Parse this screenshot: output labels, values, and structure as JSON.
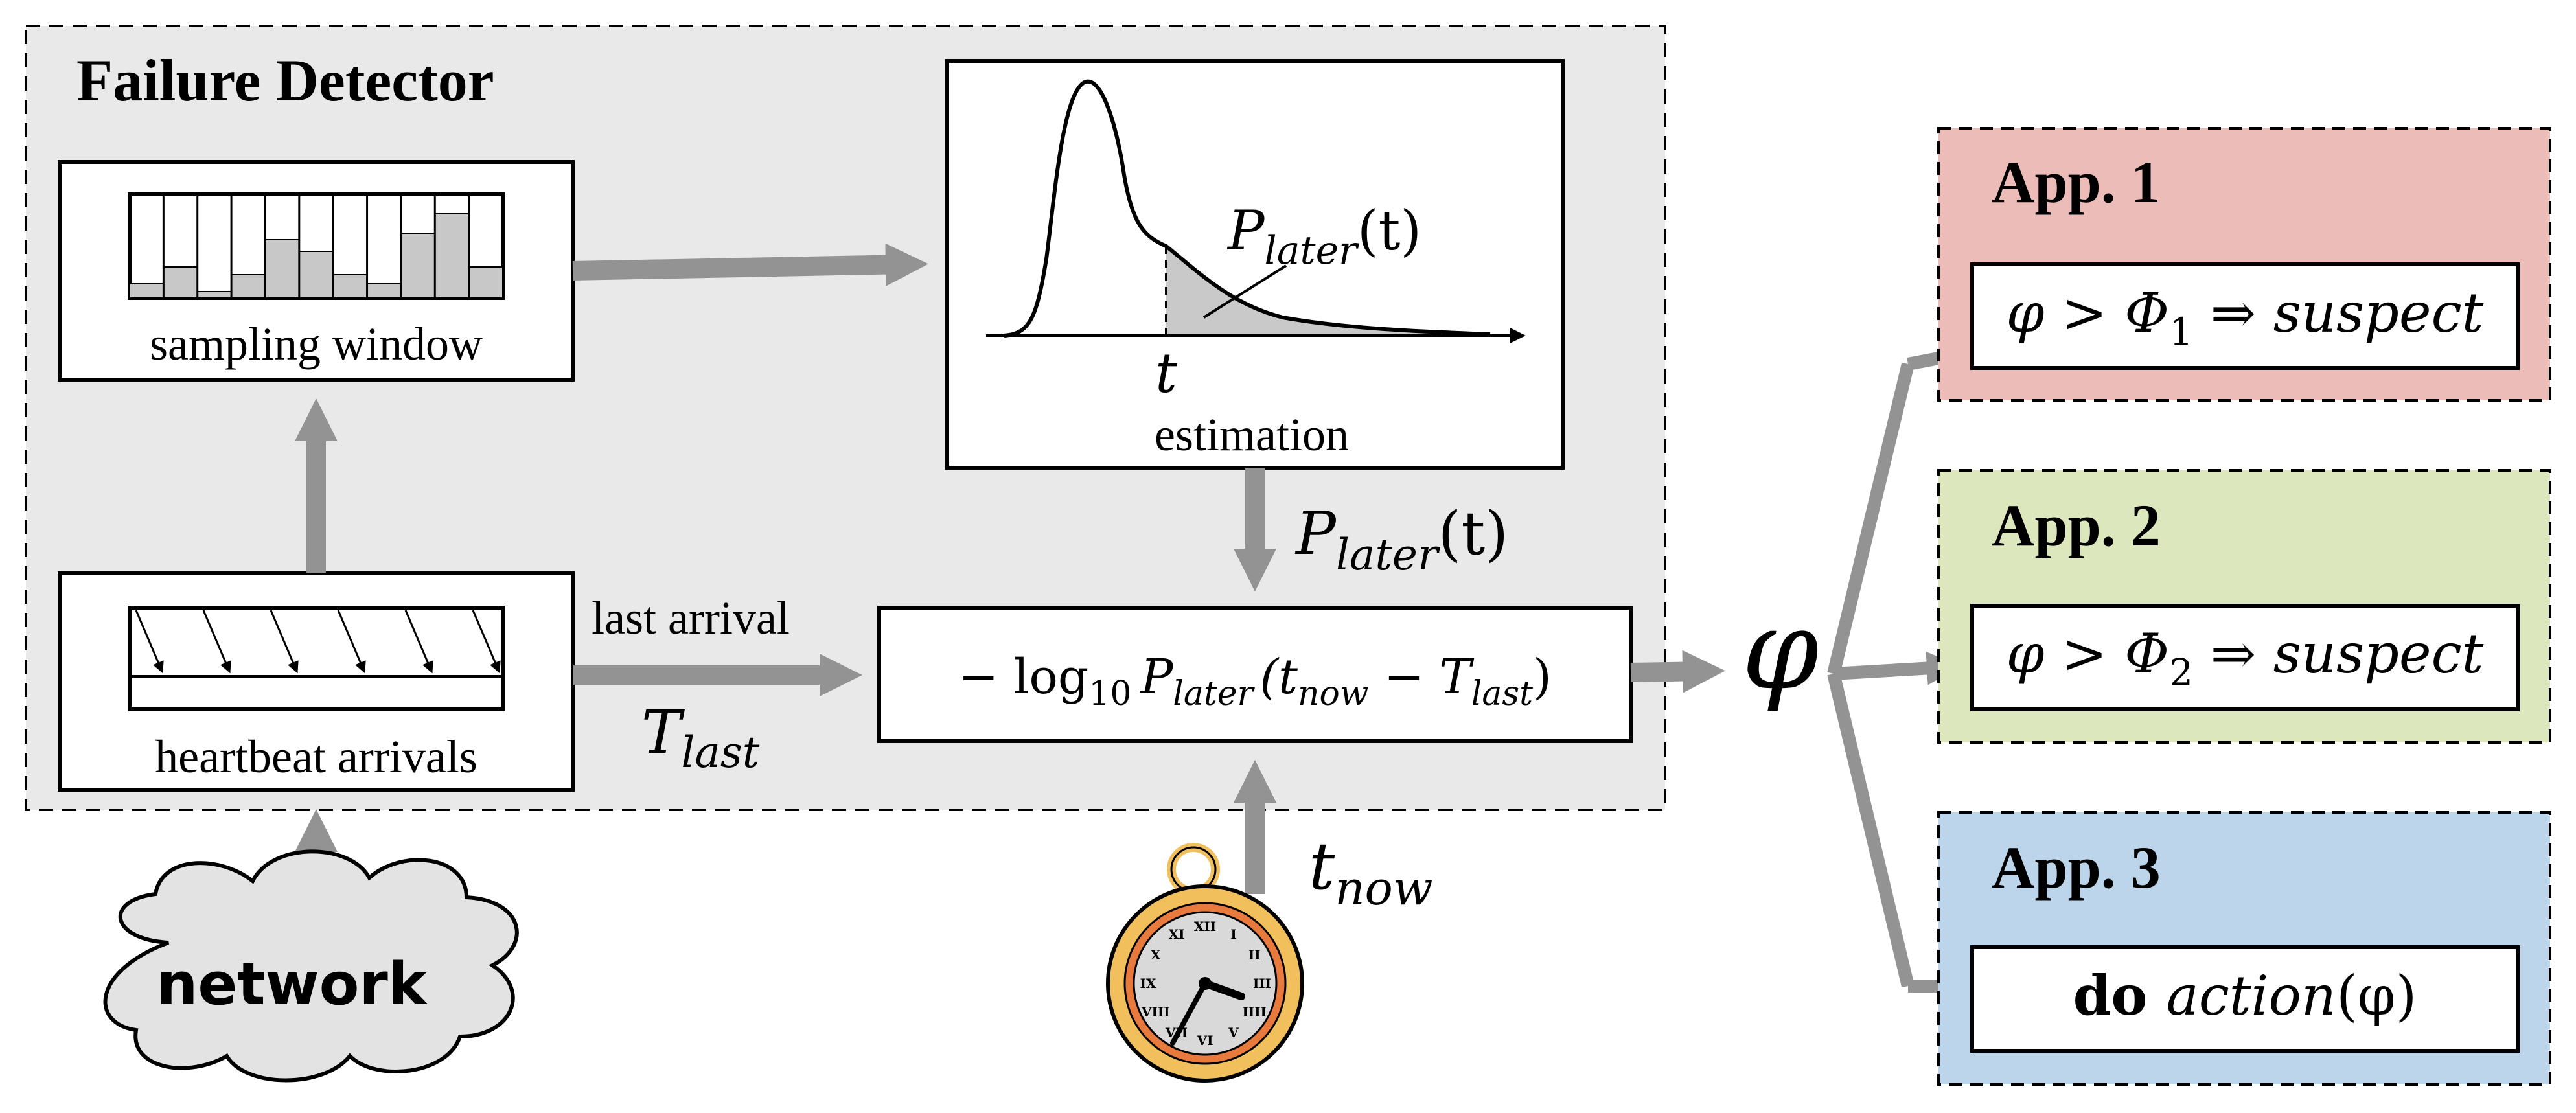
{
  "failure_detector": {
    "title": "Failure Detector",
    "sampling_window_label": "sampling window",
    "heartbeat_label": "heartbeat arrivals",
    "estimation_label": "estimation",
    "plot_curve_label_main": "P",
    "plot_curve_label_sub": "later",
    "plot_curve_label_arg": "(t)",
    "plot_t_label": "t",
    "p_later_arrow_main": "P",
    "p_later_arrow_sub": "later",
    "p_later_arrow_arg": "(t)",
    "last_arrival_label": "last arrival",
    "t_last_main": "T",
    "t_last_sub": "last",
    "phi_formula": {
      "minus_log": "− log",
      "log_sub": "10",
      "p": "P",
      "p_sub": "later",
      "open": "(t",
      "now_sub": "now",
      "minus": " − T",
      "last_sub": "last",
      "close": ")"
    }
  },
  "clock": {
    "t_now_main": "t",
    "t_now_sub": "now",
    "roman_numerals": [
      "XII",
      "I",
      "II",
      "III",
      "IIII",
      "V",
      "VI",
      "VII",
      "VIII",
      "IX",
      "X",
      "XI"
    ]
  },
  "network_label": "network",
  "phi_symbol": "φ",
  "apps": [
    {
      "title": "App. 1",
      "expr_lhs": "φ > Φ",
      "expr_sub": "1",
      "expr_rhs": " ⇒ ",
      "expr_word": "suspect",
      "color": "#ecbcb8"
    },
    {
      "title": "App. 2",
      "expr_lhs": "φ > Φ",
      "expr_sub": "2",
      "expr_rhs": " ⇒ ",
      "expr_word": "suspect",
      "color": "#dde7bd"
    },
    {
      "title": "App. 3",
      "expr_do": "do ",
      "expr_word": "action",
      "expr_arg": "(φ)",
      "color": "#bcd5ea"
    }
  ],
  "colors": {
    "detector_bg": "#e9e9e9",
    "arrow": "#939393",
    "bar_fill": "#c8c8c8",
    "clock_gold": "#f1bf5b",
    "clock_orange": "#e97a3d"
  }
}
